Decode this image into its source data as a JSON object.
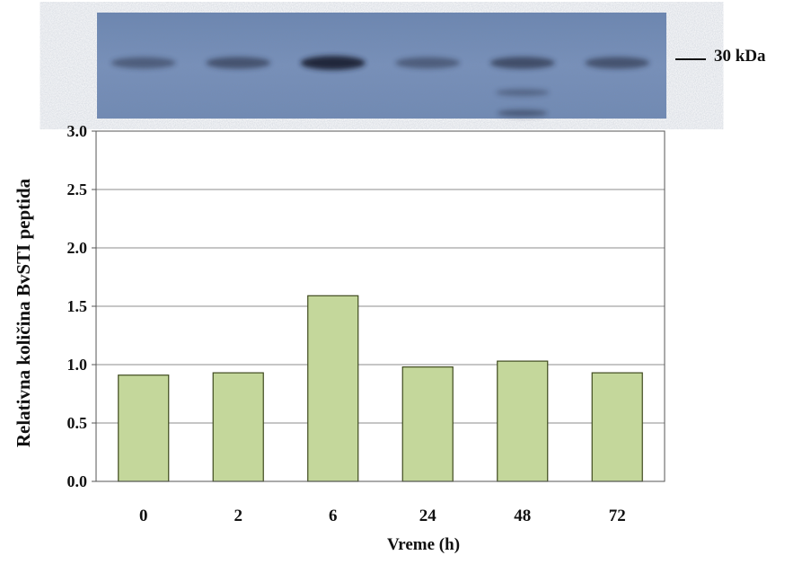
{
  "blot": {
    "marker_label": "30 kDa",
    "band_intensity": [
      0.45,
      0.55,
      0.95,
      0.45,
      0.6,
      0.55
    ]
  },
  "colors": {
    "bar_fill": "#c4d79b",
    "bar_stroke": "#3f4a1e",
    "blot_bg": "#6e89b4",
    "band": "#1c2436"
  },
  "chart_data": {
    "type": "bar",
    "categories": [
      "0",
      "2",
      "6",
      "24",
      "48",
      "72"
    ],
    "values": [
      0.91,
      0.93,
      1.59,
      0.98,
      1.03,
      0.93
    ],
    "xlabel": "Vreme  (h)",
    "ylabel": "Relativna količina BvSTI peptida",
    "ylim": [
      0,
      3.0
    ],
    "yticks": [
      "0.0",
      "0.5",
      "1.0",
      "1.5",
      "2.0",
      "2.5",
      "3.0"
    ],
    "grid": true,
    "legend": "none"
  }
}
